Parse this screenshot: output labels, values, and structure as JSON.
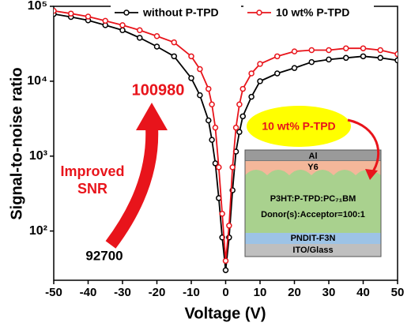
{
  "chart_data": {
    "type": "line",
    "log_y": true,
    "legend": "top",
    "xlabel": "Voltage (V)",
    "ylabel": "Signal-to-noise ratio",
    "x": [
      -50,
      -45,
      -40,
      -35,
      -30,
      -25,
      -20,
      -15,
      -10,
      -7.5,
      -5,
      -4,
      -3,
      -2,
      -1,
      0,
      1,
      2,
      3,
      4,
      5,
      7.5,
      10,
      15,
      20,
      25,
      30,
      35,
      40,
      45,
      50
    ],
    "series": [
      {
        "name": "without P-TPD",
        "color": "#000000",
        "values": [
          79000,
          72000,
          65000,
          56000,
          48000,
          38000,
          29000,
          21500,
          11000,
          6500,
          3000,
          1650,
          800,
          275,
          82,
          30,
          82,
          350,
          1150,
          2100,
          3400,
          6200,
          10000,
          12700,
          15000,
          18000,
          19500,
          20500,
          21500,
          20500,
          19000
        ]
      },
      {
        "name": "10 wt% P-TPD",
        "color": "#e8141b",
        "values": [
          87000,
          80000,
          73000,
          64000,
          56000,
          48000,
          40000,
          33000,
          21500,
          14500,
          7900,
          4900,
          2400,
          710,
          170,
          40,
          118,
          710,
          2400,
          4900,
          7900,
          12700,
          17000,
          21500,
          25000,
          26000,
          26000,
          27500,
          27500,
          26000,
          23000
        ]
      }
    ],
    "xlim": [
      -50,
      50
    ],
    "xticks": [
      -50,
      -40,
      -30,
      -20,
      -10,
      0,
      10,
      20,
      30,
      40,
      50
    ],
    "ylim": [
      22,
      100000
    ],
    "yticks": [
      {
        "value": 100,
        "label": "10²"
      },
      {
        "value": 1000,
        "label": "10³"
      },
      {
        "value": 10000,
        "label": "10⁴"
      },
      {
        "value": 100000,
        "label": "10⁵"
      }
    ],
    "annotations": {
      "high": "100980",
      "low": "92700",
      "arrow_text": [
        "Improved",
        "SNR"
      ]
    },
    "inset": {
      "callout": "10 wt% P-TPD",
      "layers": [
        "Al",
        "Y6",
        "P3HT:P-TPD:PC₇₁BM",
        "Donor(s):Acceptor=100:1",
        "PNDIT-F3N",
        "ITO/Glass"
      ]
    }
  }
}
